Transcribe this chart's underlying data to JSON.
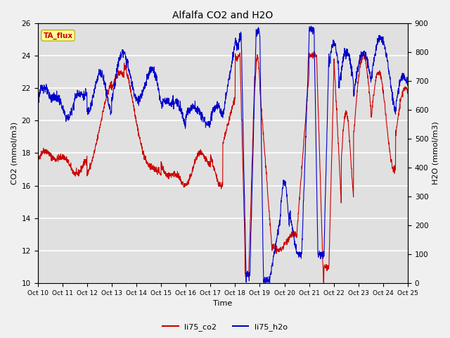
{
  "title": "Alfalfa CO2 and H2O",
  "xlabel": "Time",
  "ylabel_left": "CO2 (mmol/m3)",
  "ylabel_right": "H2O (mmol/m3)",
  "ylim_left": [
    10,
    26
  ],
  "ylim_right": [
    0,
    900
  ],
  "yticks_left": [
    10,
    12,
    14,
    16,
    18,
    20,
    22,
    24,
    26
  ],
  "yticks_right": [
    0,
    100,
    200,
    300,
    400,
    500,
    600,
    700,
    800,
    900
  ],
  "xtick_labels": [
    "Oct 10",
    "Oct 11",
    "Oct 12",
    "Oct 13",
    "Oct 14",
    "Oct 15",
    "Oct 16",
    "Oct 17",
    "Oct 18",
    "Oct 19",
    "Oct 20",
    "Oct 21",
    "Oct 22",
    "Oct 23",
    "Oct 24",
    "Oct 25"
  ],
  "bg_color": "#f0f0f0",
  "plot_bg_color": "#e0e0e0",
  "legend_label_co2": "li75_co2",
  "legend_label_h2o": "li75_h2o",
  "annotation_text": "TA_flux",
  "co2_color": "#cc0000",
  "h2o_color": "#0000cc",
  "linewidth": 0.8,
  "title_fontsize": 10,
  "axis_fontsize": 8,
  "tick_fontsize": 7.5,
  "legend_fontsize": 8
}
